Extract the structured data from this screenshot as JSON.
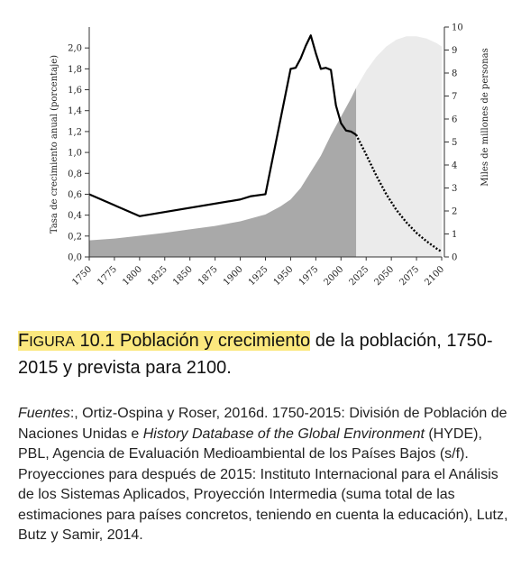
{
  "chart_data": {
    "type": "area",
    "xlabel": "",
    "ylabel_left": "Tasa de crecimiento anual (porcentaje)",
    "ylabel_right": "Miles de millones de personas",
    "xlim": [
      1750,
      2100
    ],
    "ylim_left": [
      0,
      2.2
    ],
    "ylim_right": [
      0,
      10
    ],
    "x_ticks": [
      "1750",
      "1775",
      "1800",
      "1825",
      "1850",
      "1875",
      "1900",
      "1925",
      "1950",
      "1975",
      "2000",
      "2025",
      "2050",
      "2075",
      "2100"
    ],
    "y_left_ticks": [
      "0,0",
      "0,2",
      "0,4",
      "0,6",
      "0,8",
      "1,0",
      "1,2",
      "1,4",
      "1,6",
      "1,8",
      "2,0"
    ],
    "y_right_ticks": [
      "0",
      "1",
      "2",
      "3",
      "4",
      "5",
      "6",
      "7",
      "8",
      "9",
      "10"
    ],
    "population_historic": {
      "x": [
        1750,
        1775,
        1800,
        1825,
        1850,
        1875,
        1900,
        1925,
        1940,
        1950,
        1960,
        1970,
        1980,
        1990,
        2000,
        2010,
        2015
      ],
      "y": [
        0.72,
        0.8,
        0.92,
        1.05,
        1.2,
        1.35,
        1.55,
        1.85,
        2.2,
        2.5,
        3.0,
        3.7,
        4.4,
        5.3,
        6.1,
        6.9,
        7.35
      ]
    },
    "population_projected": {
      "x": [
        2015,
        2025,
        2035,
        2045,
        2055,
        2065,
        2075,
        2085,
        2095,
        2100
      ],
      "y": [
        7.35,
        8.1,
        8.7,
        9.15,
        9.45,
        9.6,
        9.6,
        9.5,
        9.3,
        9.15
      ]
    },
    "growth_rate_historic": {
      "x": [
        1750,
        1800,
        1900,
        1910,
        1925,
        1950,
        1955,
        1960,
        1965,
        1970,
        1975,
        1980,
        1985,
        1990,
        1995,
        2000,
        2005,
        2010,
        2015
      ],
      "y": [
        0.6,
        0.39,
        0.55,
        0.58,
        0.6,
        1.8,
        1.81,
        1.9,
        2.02,
        2.12,
        1.95,
        1.8,
        1.81,
        1.79,
        1.45,
        1.28,
        1.21,
        1.2,
        1.17
      ]
    },
    "growth_rate_projected": {
      "x": [
        2015,
        2025,
        2035,
        2045,
        2055,
        2065,
        2075,
        2085,
        2095,
        2100
      ],
      "y": [
        1.17,
        0.98,
        0.78,
        0.6,
        0.45,
        0.33,
        0.23,
        0.15,
        0.08,
        0.05
      ]
    },
    "colors": {
      "historic_area": "#a9a9a9",
      "projected_area": "#ebebeb",
      "line": "#000000",
      "axis": "#333333"
    },
    "grid": false
  },
  "caption": {
    "figure_first": "F",
    "figure_word": "IGURA",
    "figure_number": "10.1",
    "title_highlight": "Población y crecimiento",
    "title_rest": " de la población, 1750-2015 y prevista para 2100."
  },
  "sources": {
    "label": "Fuentes",
    "part1": ":, Ortiz-Ospina y Roser, 2016d. 1750-2015: División de Población de Naciones Unidas e ",
    "italic_title": "History Database of the Global Environment",
    "part2": " (HYDE), PBL, Agencia de Evaluación Medioambiental de los Países Bajos (s/f). Proyecciones para después de 2015: Instituto Internacional para el Análisis de los Sistemas Aplicados, Proyección Intermedia (suma total de las estimaciones para países concretos, teniendo en cuenta la educación), Lutz, Butz y Samir, 2014."
  }
}
